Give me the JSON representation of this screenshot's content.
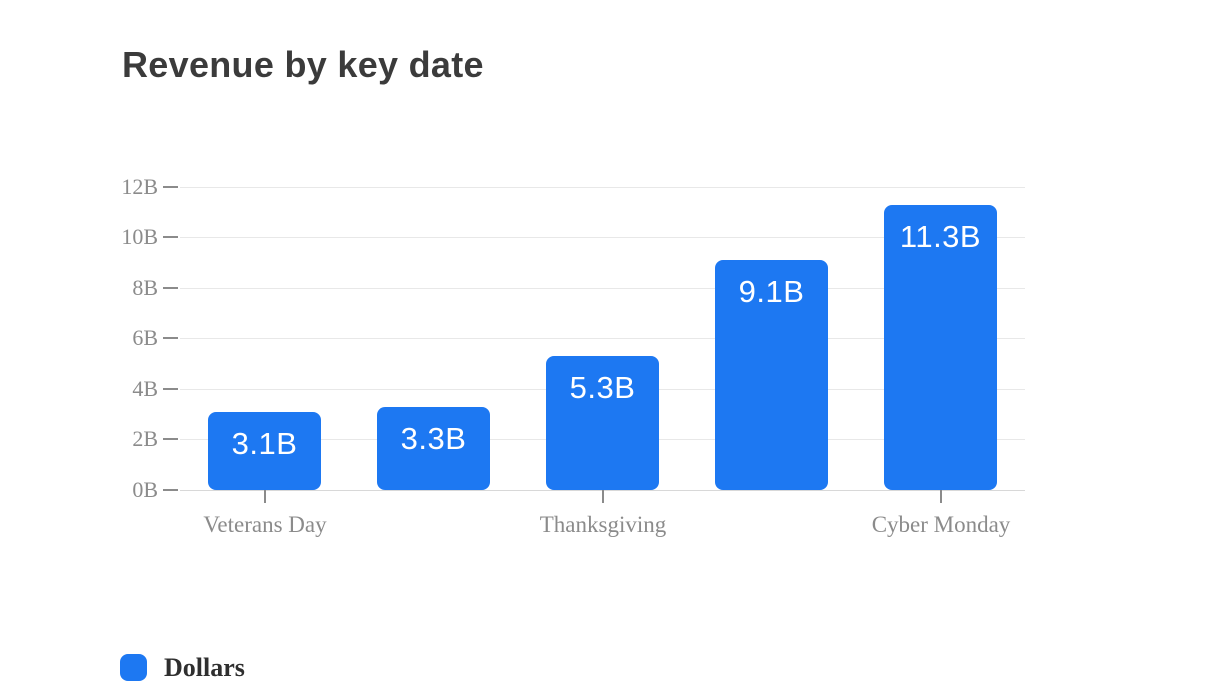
{
  "chart_data": {
    "type": "bar",
    "title": "Revenue by key date",
    "categories": [
      "Veterans Day",
      "",
      "Thanksgiving",
      "",
      "Cyber Monday"
    ],
    "series": [
      {
        "name": "Dollars",
        "values": [
          3.1,
          3.3,
          5.3,
          9.1,
          11.3
        ]
      }
    ],
    "value_labels": [
      "3.1B",
      "3.3B",
      "5.3B",
      "9.1B",
      "11.3B"
    ],
    "y_tick_labels": [
      "0B",
      "2B",
      "4B",
      "6B",
      "8B",
      "10B",
      "12B"
    ],
    "ylim": [
      0,
      12
    ],
    "xlabel": "",
    "ylabel": "",
    "grid": true,
    "legend_position": "bottom-left",
    "colors": {
      "bar": "#1d78f2",
      "title_text": "#3b3b3b",
      "axis_text": "#8b8b8b",
      "gridline": "#e8e8e8",
      "baseline": "#d8d8d8",
      "value_label_text": "#ffffff",
      "legend_text": "#2f2f2f",
      "background": "#ffffff"
    }
  }
}
